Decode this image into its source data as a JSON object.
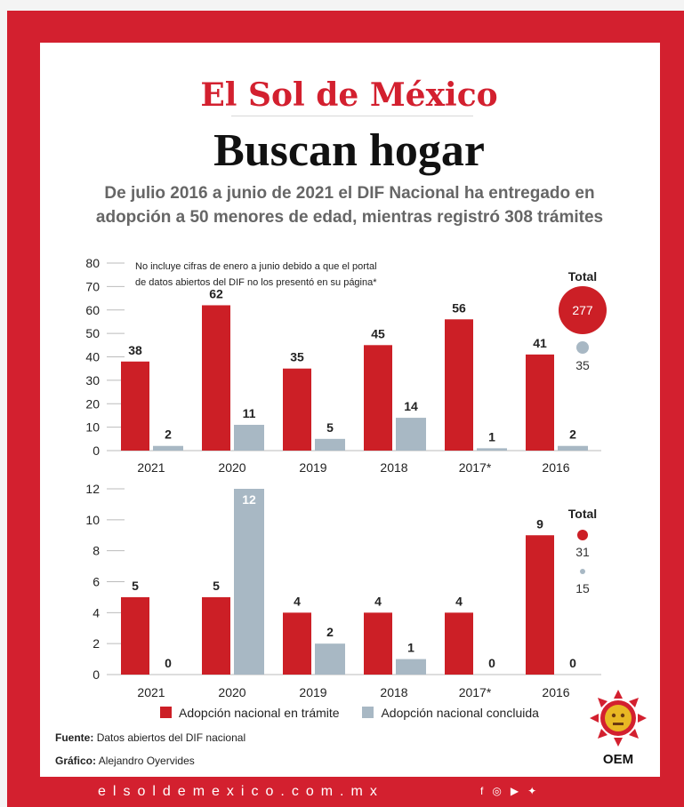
{
  "header": {
    "logo_text": "El Sol de México",
    "title": "Buscan hogar",
    "subtitle": "De julio 2016 a junio de 2021 el DIF Nacional ha entregado en adopción a 50 menores de edad, mientras registró 308 trámites"
  },
  "colors": {
    "frame": "#d3202f",
    "tramite": "#cc1f26",
    "concluida": "#a8b8c4"
  },
  "chart_data": [
    {
      "type": "bar",
      "categories": [
        "2021",
        "2020",
        "2019",
        "2018",
        "2017*",
        "2016"
      ],
      "series": [
        {
          "name": "Adopción nacional en trámite",
          "values": [
            38,
            62,
            35,
            45,
            56,
            41
          ]
        },
        {
          "name": "Adopción nacional concluida",
          "values": [
            2,
            11,
            5,
            14,
            1,
            2
          ]
        }
      ],
      "ylim": [
        0,
        80
      ],
      "yticks": [
        0,
        10,
        20,
        30,
        40,
        50,
        60,
        70,
        80
      ],
      "annotation": "No incluye cifras de enero a junio debido a que el portal de datos abiertos del DIF no los presentó en su página*",
      "totals": {
        "label": "Total",
        "tramite": 277,
        "concluida": 35
      }
    },
    {
      "type": "bar",
      "categories": [
        "2021",
        "2020",
        "2019",
        "2018",
        "2017*",
        "2016"
      ],
      "series": [
        {
          "name": "Adopción nacional en trámite",
          "values": [
            5,
            5,
            4,
            4,
            4,
            9
          ]
        },
        {
          "name": "Adopción nacional concluida",
          "values": [
            0,
            12,
            2,
            1,
            0,
            0
          ]
        }
      ],
      "ylim": [
        0,
        12
      ],
      "yticks": [
        0,
        2,
        4,
        6,
        8,
        10,
        12
      ],
      "totals": {
        "label": "Total",
        "tramite": 31,
        "concluida": 15
      }
    }
  ],
  "legend": {
    "tramite": "Adopción nacional en trámite",
    "concluida": "Adopción nacional concluida"
  },
  "source": {
    "label": "Fuente:",
    "text": "Datos abiertos del DIF nacional"
  },
  "credit": {
    "label": "Gráfico:",
    "text": "Alejandro Oyervides"
  },
  "footer": {
    "url": "elsoldemexico.com.mx",
    "social_icons": [
      "facebook-icon",
      "instagram-icon",
      "youtube-icon",
      "twitter-icon"
    ],
    "brand": "OEM"
  }
}
